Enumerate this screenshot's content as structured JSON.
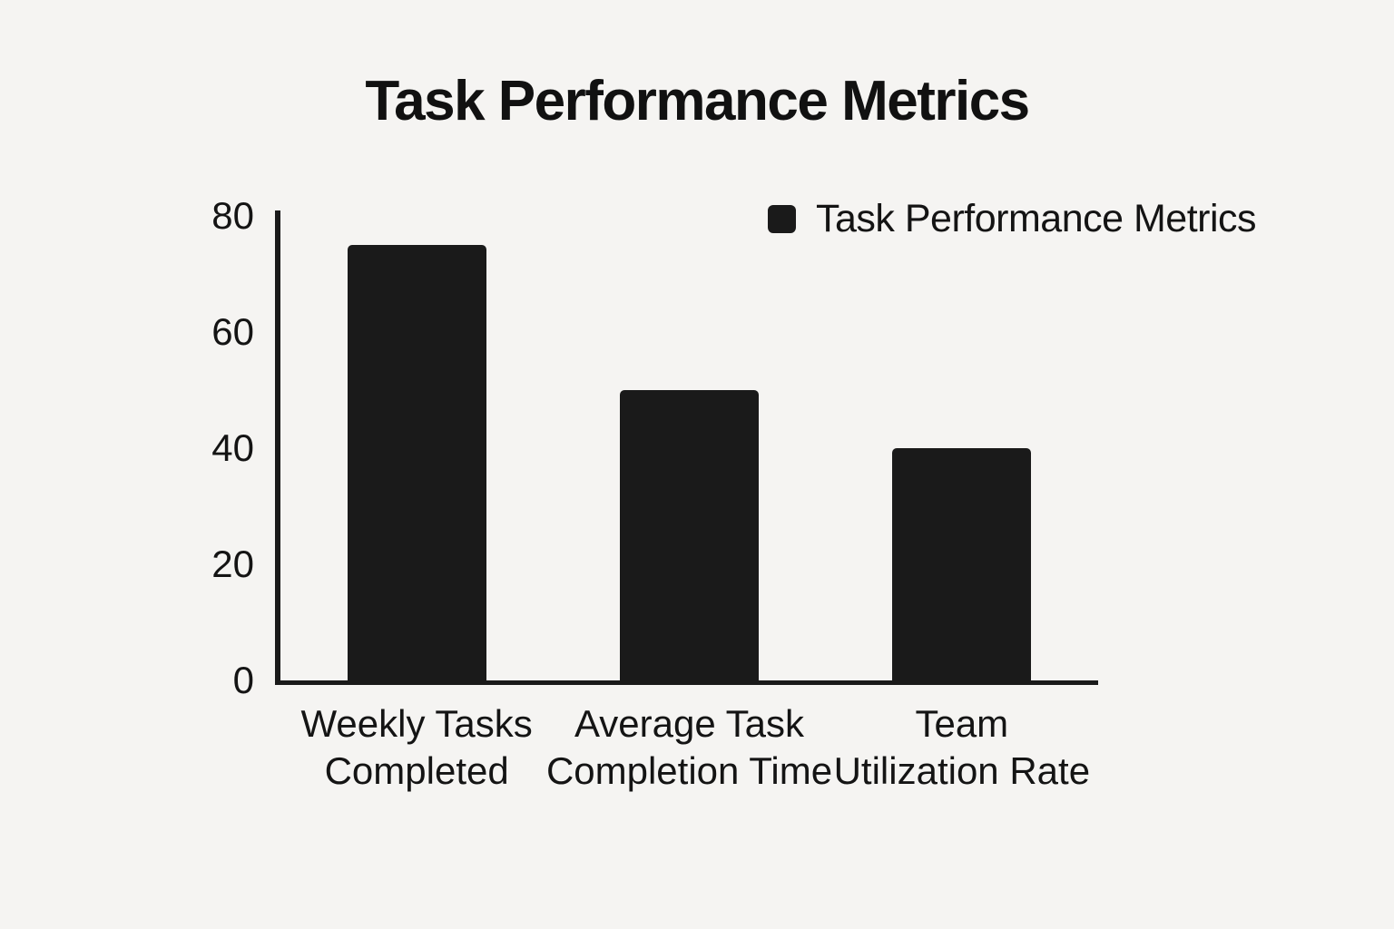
{
  "page": {
    "background_color": "#f5f4f2"
  },
  "chart_data": {
    "type": "bar",
    "title": "Task Performance Metrics",
    "categories": [
      "Weekly Tasks Completed",
      "Average Task Completion Time",
      "Team Utilization Rate"
    ],
    "category_lines": [
      [
        "Weekly Tasks",
        "Completed"
      ],
      [
        "Average Task",
        "Completion Time"
      ],
      [
        "Team",
        "Utilization Rate"
      ]
    ],
    "values": [
      75,
      50,
      40
    ],
    "series": [
      {
        "name": "Task Performance Metrics",
        "values": [
          75,
          50,
          40
        ]
      }
    ],
    "legend": {
      "label": "Task Performance Metrics",
      "position": "upper-right",
      "swatch_color": "#1a1a1a"
    },
    "yticks": [
      0,
      20,
      40,
      60,
      80
    ],
    "ylim": [
      0,
      80
    ],
    "xlabel": "",
    "ylabel": "",
    "grid": false,
    "bar_color": "#1a1a1a",
    "axis_color": "#1a1a1a",
    "text_color": "#141414",
    "title_color": "#111111"
  }
}
